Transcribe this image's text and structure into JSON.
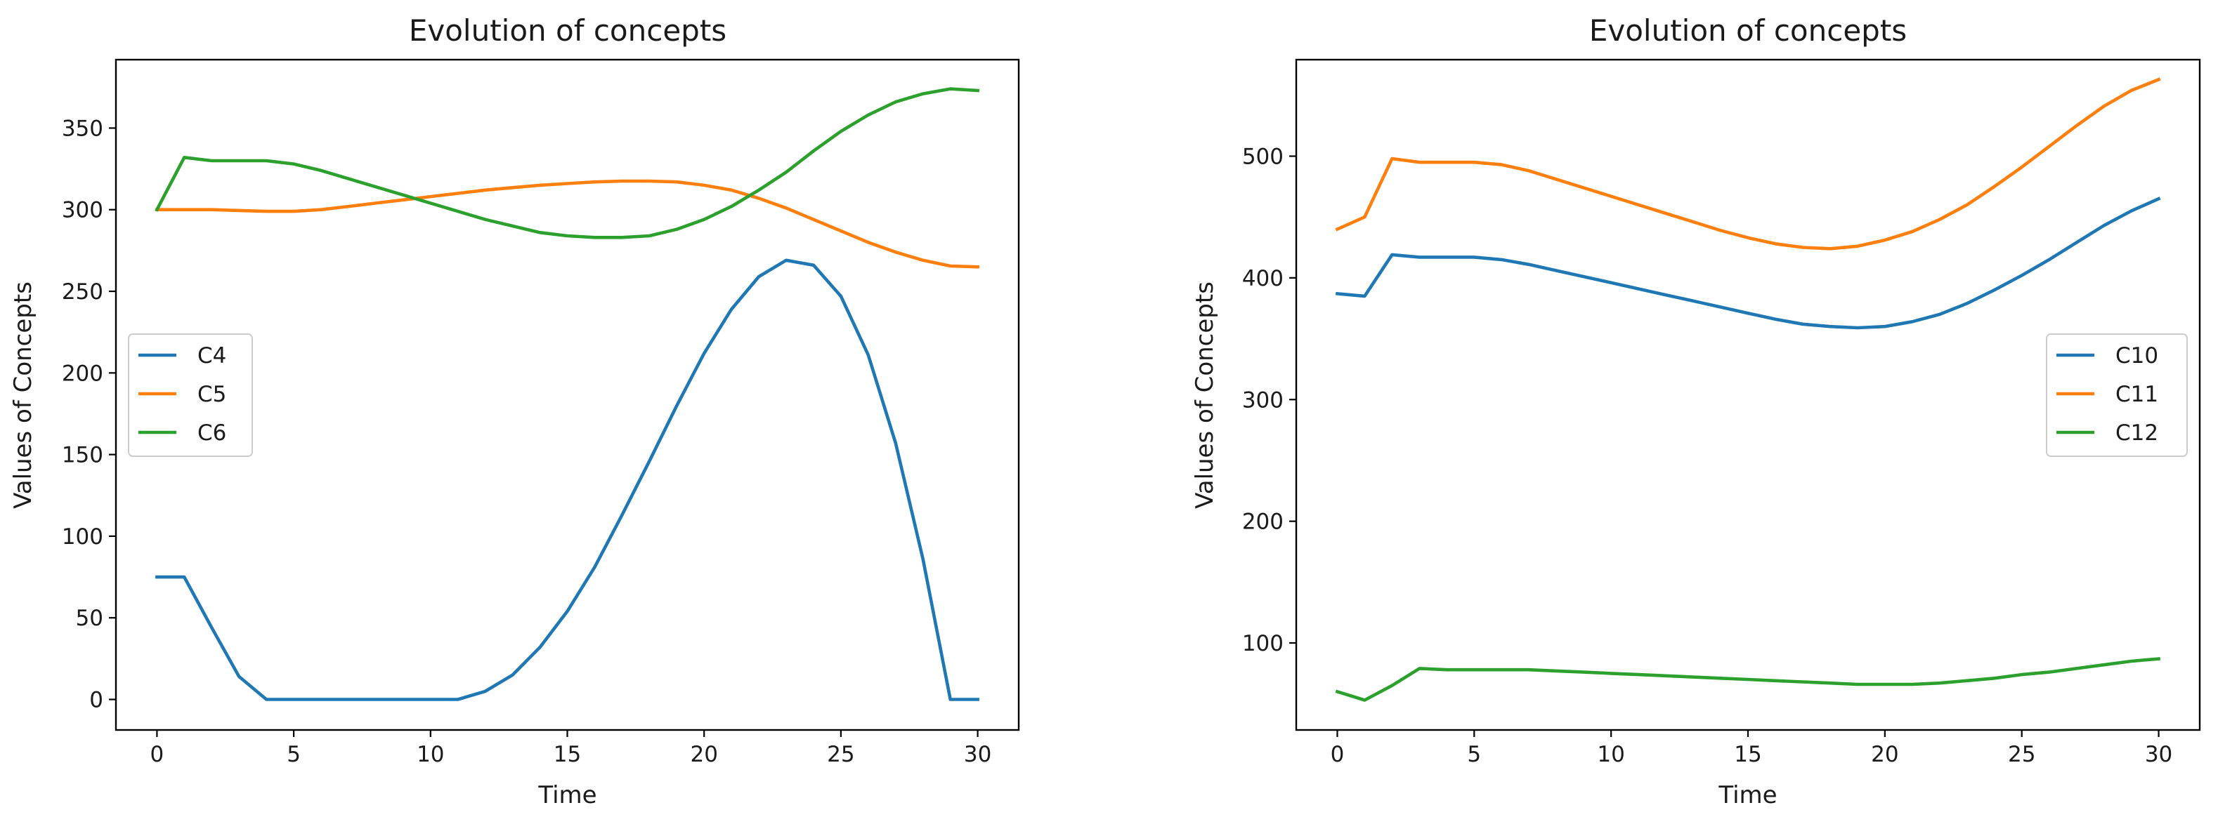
{
  "chart_data": [
    {
      "type": "line",
      "title": "Evolution of concepts",
      "xlabel": "Time",
      "ylabel": "Values of Concepts",
      "xlim": [
        -1.5,
        31.5
      ],
      "ylim": [
        -18.7,
        391.9
      ],
      "xticks": [
        0,
        5,
        10,
        15,
        20,
        25,
        30
      ],
      "yticks": [
        0,
        50,
        100,
        150,
        200,
        250,
        300,
        350
      ],
      "grid": false,
      "legend_position": "center-left",
      "x": [
        0,
        1,
        2,
        3,
        4,
        5,
        6,
        7,
        8,
        9,
        10,
        11,
        12,
        13,
        14,
        15,
        16,
        17,
        18,
        19,
        20,
        21,
        22,
        23,
        24,
        25,
        26,
        27,
        28,
        29,
        30
      ],
      "series": [
        {
          "name": "C4",
          "color": "#1f77b4",
          "values": [
            75,
            75,
            44,
            14,
            0,
            0,
            0,
            0,
            0,
            0,
            0,
            0,
            5,
            15,
            32,
            54,
            81,
            113,
            146,
            180,
            212,
            239,
            259,
            269,
            266,
            247,
            211,
            157,
            86,
            0,
            0
          ]
        },
        {
          "name": "C5",
          "color": "#ff7f0e",
          "values": [
            300,
            300,
            300,
            299.5,
            299,
            299,
            300,
            302,
            304,
            306,
            308,
            310,
            312,
            313.5,
            315,
            316,
            317,
            317.5,
            317.5,
            317,
            315,
            312,
            307,
            301,
            294,
            287,
            280,
            274,
            269,
            265.5,
            265
          ]
        },
        {
          "name": "C6",
          "color": "#2ca02c",
          "values": [
            300,
            332,
            330,
            330,
            330,
            328,
            324,
            319,
            314,
            309,
            304,
            299,
            294,
            290,
            286,
            284,
            283,
            283,
            284,
            288,
            294,
            302,
            312,
            323,
            336,
            348,
            358,
            366,
            371,
            374,
            373
          ]
        }
      ]
    },
    {
      "type": "line",
      "title": "Evolution of concepts",
      "xlabel": "Time",
      "ylabel": "Values of Concepts",
      "xlim": [
        -1.5,
        31.5
      ],
      "ylim": [
        28.5,
        579.3
      ],
      "xticks": [
        0,
        5,
        10,
        15,
        20,
        25,
        30
      ],
      "yticks": [
        100,
        200,
        300,
        400,
        500
      ],
      "grid": false,
      "legend_position": "center-right",
      "x": [
        0,
        1,
        2,
        3,
        4,
        5,
        6,
        7,
        8,
        9,
        10,
        11,
        12,
        13,
        14,
        15,
        16,
        17,
        18,
        19,
        20,
        21,
        22,
        23,
        24,
        25,
        26,
        27,
        28,
        29,
        30
      ],
      "series": [
        {
          "name": "C10",
          "color": "#1f77b4",
          "values": [
            387,
            385,
            419,
            417,
            417,
            417,
            415,
            411,
            406,
            401,
            396,
            391,
            386,
            381,
            376,
            371,
            366,
            362,
            360,
            359,
            360,
            364,
            370,
            379,
            390,
            402,
            415,
            429,
            443,
            455,
            465
          ]
        },
        {
          "name": "C11",
          "color": "#ff7f0e",
          "values": [
            440,
            450,
            498,
            495,
            495,
            495,
            493,
            488,
            481,
            474,
            467,
            460,
            453,
            446,
            439,
            433,
            428,
            425,
            424,
            426,
            431,
            438,
            448,
            460,
            475,
            491,
            508,
            525,
            541,
            554,
            563
          ]
        },
        {
          "name": "C12",
          "color": "#2ca02c",
          "values": [
            60,
            53,
            65,
            79,
            78,
            78,
            78,
            78,
            77,
            76,
            75,
            74,
            73,
            72,
            71,
            70,
            69,
            68,
            67,
            66,
            66,
            66,
            67,
            69,
            71,
            74,
            76,
            79,
            82,
            85,
            87
          ]
        }
      ]
    }
  ]
}
